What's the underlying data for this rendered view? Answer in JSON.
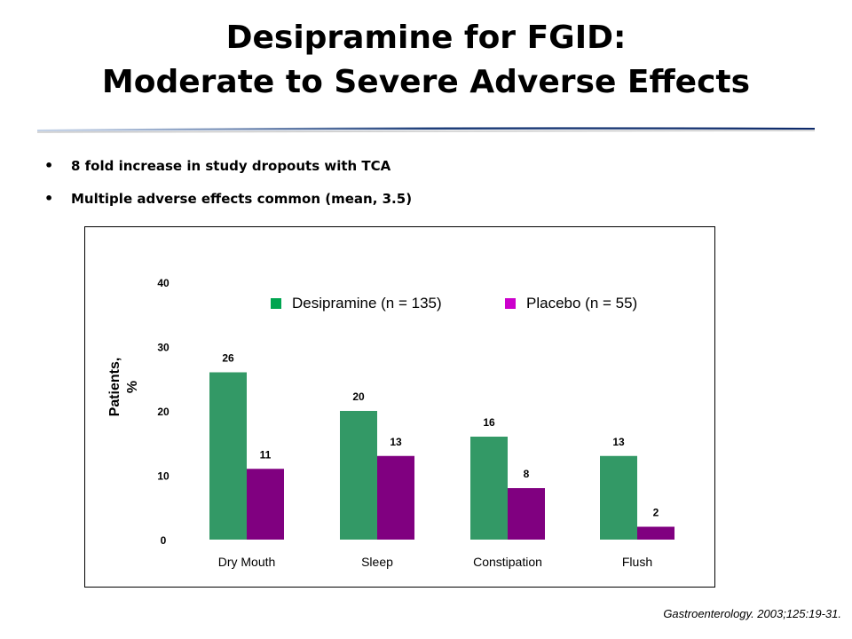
{
  "slide": {
    "title_line1": "Desipramine for FGID:",
    "title_line2": "Moderate to Severe Adverse Effects",
    "bullets": [
      "8 fold increase in study dropouts with TCA",
      "Multiple adverse effects common (mean, 3.5)"
    ],
    "citation": "Gastroenterology. 2003;125:19-31."
  },
  "chart_data": {
    "type": "bar",
    "title": "",
    "xlabel": "",
    "ylabel": "Patients, %",
    "ylim": [
      0,
      40
    ],
    "yticks": [
      0,
      10,
      20,
      30,
      40
    ],
    "grid": false,
    "legend_position": "top-right",
    "categories": [
      "Dry Mouth",
      "Sleep",
      "Constipation",
      "Flush"
    ],
    "series": [
      {
        "name": "Desipramine (n = 135)",
        "values": [
          26,
          20,
          16,
          13
        ],
        "color": "#339966"
      },
      {
        "name": "Placebo (n = 55)",
        "values": [
          11,
          13,
          8,
          2
        ],
        "color": "#800080"
      }
    ],
    "legend_marker_colors": [
      "#00a550",
      "#cc00cc"
    ]
  }
}
